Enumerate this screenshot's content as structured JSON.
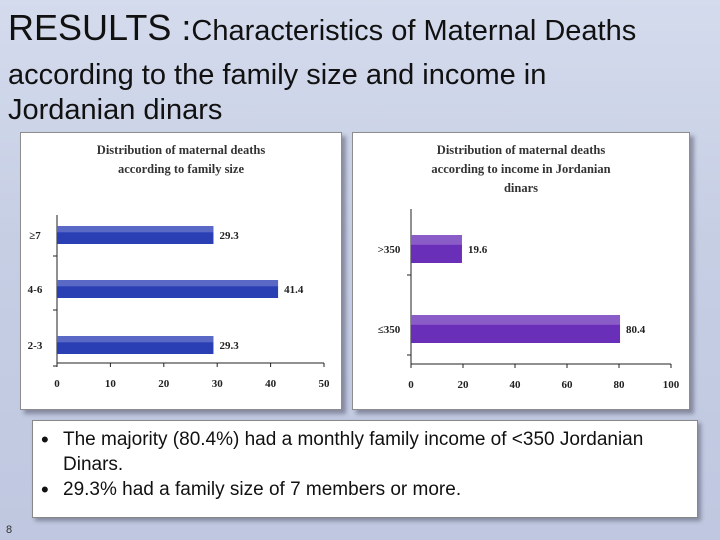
{
  "slide": {
    "title_main": "RESULTS :",
    "title_rest": "Characteristics of Maternal Deaths",
    "subtitle": "according to the family size and income in Jordanian dinars",
    "bullets": [
      "The majority (80.4%) had a monthly family income of <350 Jordanian Dinars.",
      "29.3% had a family size of 7 members or more."
    ],
    "slide_number": "8"
  },
  "chart_data": [
    {
      "type": "bar",
      "orientation": "horizontal",
      "title": "Distribution of maternal deaths according to family size",
      "categories": [
        "≥7",
        "4-6",
        "2-3"
      ],
      "values": [
        29.3,
        41.4,
        29.3
      ],
      "data_labels": [
        "29.3",
        "41.4",
        "29.3"
      ],
      "xlim": [
        0,
        50
      ],
      "xticks": [
        "0",
        "10",
        "20",
        "30",
        "40",
        "50"
      ],
      "bar_color": "#2b3fb5",
      "grid": false
    },
    {
      "type": "bar",
      "orientation": "horizontal",
      "title": "Distribution of maternal deaths according to income in Jordanian dinars",
      "categories": [
        ">350",
        "≤350"
      ],
      "values": [
        19.6,
        80.4
      ],
      "data_labels": [
        "19.6",
        "80.4"
      ],
      "xlim": [
        0,
        100
      ],
      "xticks": [
        "0",
        "20",
        "40",
        "60",
        "80",
        "100"
      ],
      "bar_color": "#6a2fb8",
      "grid": false
    }
  ]
}
